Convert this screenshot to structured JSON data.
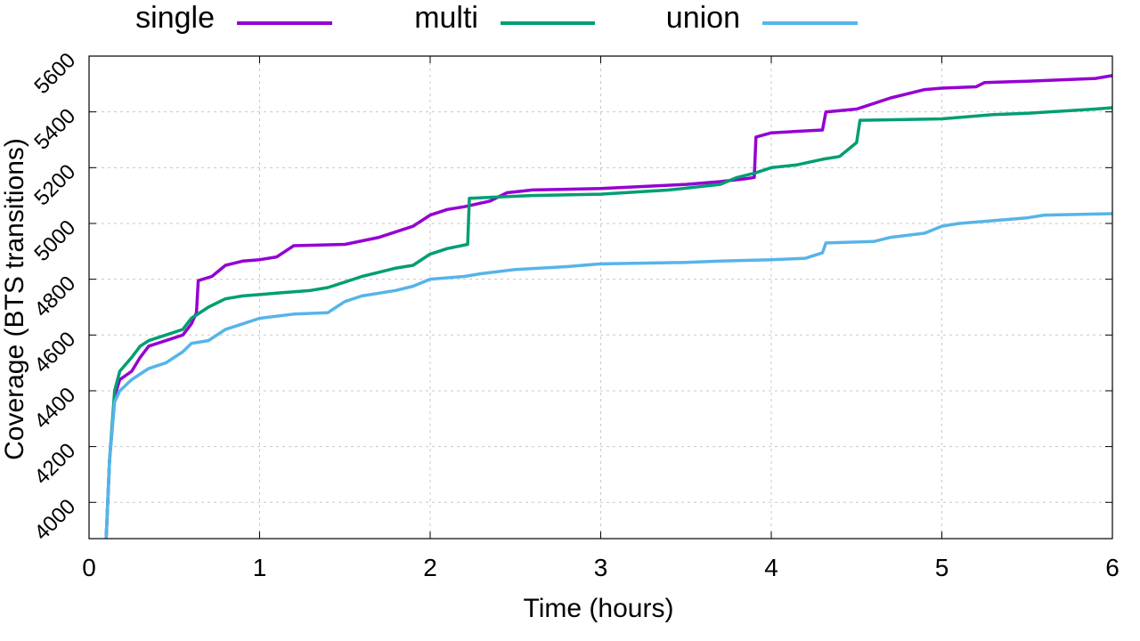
{
  "chart_data": {
    "type": "line",
    "xlabel": "Time (hours)",
    "ylabel": "Coverage (BTS transitions)",
    "xlim": [
      0,
      6
    ],
    "ylim": [
      3870,
      5600
    ],
    "x_ticks": [
      "0",
      "1",
      "2",
      "3",
      "4",
      "5",
      "6"
    ],
    "y_ticks": [
      "4000",
      "4200",
      "4400",
      "4600",
      "4800",
      "5000",
      "5200",
      "5400",
      "5600"
    ],
    "grid": true,
    "legend_position": "top",
    "series": [
      {
        "name": "single",
        "color": "#9400d3",
        "points": [
          [
            0.1,
            3870
          ],
          [
            0.12,
            4150
          ],
          [
            0.15,
            4380
          ],
          [
            0.18,
            4440
          ],
          [
            0.25,
            4470
          ],
          [
            0.3,
            4520
          ],
          [
            0.35,
            4560
          ],
          [
            0.45,
            4580
          ],
          [
            0.55,
            4600
          ],
          [
            0.6,
            4640
          ],
          [
            0.63,
            4680
          ],
          [
            0.64,
            4795
          ],
          [
            0.72,
            4810
          ],
          [
            0.8,
            4850
          ],
          [
            0.9,
            4865
          ],
          [
            1.0,
            4870
          ],
          [
            1.1,
            4880
          ],
          [
            1.15,
            4900
          ],
          [
            1.2,
            4920
          ],
          [
            1.5,
            4925
          ],
          [
            1.7,
            4950
          ],
          [
            1.9,
            4990
          ],
          [
            2.0,
            5030
          ],
          [
            2.1,
            5050
          ],
          [
            2.2,
            5060
          ],
          [
            2.35,
            5080
          ],
          [
            2.45,
            5110
          ],
          [
            2.6,
            5120
          ],
          [
            3.0,
            5125
          ],
          [
            3.5,
            5140
          ],
          [
            3.7,
            5150
          ],
          [
            3.85,
            5160
          ],
          [
            3.9,
            5165
          ],
          [
            3.91,
            5310
          ],
          [
            4.0,
            5325
          ],
          [
            4.3,
            5335
          ],
          [
            4.32,
            5400
          ],
          [
            4.5,
            5410
          ],
          [
            4.55,
            5420
          ],
          [
            4.7,
            5450
          ],
          [
            4.9,
            5480
          ],
          [
            5.0,
            5485
          ],
          [
            5.2,
            5490
          ],
          [
            5.25,
            5505
          ],
          [
            5.5,
            5510
          ],
          [
            5.9,
            5520
          ],
          [
            6.0,
            5530
          ]
        ]
      },
      {
        "name": "multi",
        "color": "#009e73",
        "points": [
          [
            0.1,
            3870
          ],
          [
            0.12,
            4150
          ],
          [
            0.15,
            4400
          ],
          [
            0.18,
            4470
          ],
          [
            0.25,
            4520
          ],
          [
            0.3,
            4560
          ],
          [
            0.35,
            4580
          ],
          [
            0.45,
            4600
          ],
          [
            0.55,
            4620
          ],
          [
            0.6,
            4660
          ],
          [
            0.7,
            4700
          ],
          [
            0.8,
            4730
          ],
          [
            0.9,
            4740
          ],
          [
            1.0,
            4745
          ],
          [
            1.1,
            4750
          ],
          [
            1.3,
            4760
          ],
          [
            1.4,
            4770
          ],
          [
            1.5,
            4790
          ],
          [
            1.6,
            4810
          ],
          [
            1.7,
            4825
          ],
          [
            1.8,
            4840
          ],
          [
            1.9,
            4850
          ],
          [
            2.0,
            4890
          ],
          [
            2.1,
            4910
          ],
          [
            2.22,
            4925
          ],
          [
            2.23,
            5090
          ],
          [
            2.4,
            5095
          ],
          [
            2.6,
            5100
          ],
          [
            3.0,
            5105
          ],
          [
            3.4,
            5120
          ],
          [
            3.7,
            5140
          ],
          [
            3.8,
            5165
          ],
          [
            3.9,
            5180
          ],
          [
            4.0,
            5200
          ],
          [
            4.15,
            5210
          ],
          [
            4.3,
            5230
          ],
          [
            4.4,
            5240
          ],
          [
            4.5,
            5290
          ],
          [
            4.52,
            5370
          ],
          [
            5.0,
            5375
          ],
          [
            5.3,
            5390
          ],
          [
            5.5,
            5395
          ],
          [
            5.9,
            5410
          ],
          [
            6.0,
            5415
          ]
        ]
      },
      {
        "name": "union",
        "color": "#56b4e9",
        "points": [
          [
            0.1,
            3870
          ],
          [
            0.12,
            4150
          ],
          [
            0.15,
            4360
          ],
          [
            0.18,
            4400
          ],
          [
            0.25,
            4440
          ],
          [
            0.35,
            4480
          ],
          [
            0.45,
            4500
          ],
          [
            0.55,
            4540
          ],
          [
            0.6,
            4570
          ],
          [
            0.7,
            4580
          ],
          [
            0.8,
            4620
          ],
          [
            0.9,
            4640
          ],
          [
            1.0,
            4660
          ],
          [
            1.2,
            4675
          ],
          [
            1.4,
            4680
          ],
          [
            1.5,
            4720
          ],
          [
            1.6,
            4740
          ],
          [
            1.7,
            4750
          ],
          [
            1.8,
            4760
          ],
          [
            1.9,
            4775
          ],
          [
            2.0,
            4800
          ],
          [
            2.2,
            4810
          ],
          [
            2.3,
            4820
          ],
          [
            2.5,
            4835
          ],
          [
            2.8,
            4845
          ],
          [
            3.0,
            4855
          ],
          [
            3.5,
            4860
          ],
          [
            3.7,
            4865
          ],
          [
            4.0,
            4870
          ],
          [
            4.2,
            4875
          ],
          [
            4.3,
            4895
          ],
          [
            4.32,
            4930
          ],
          [
            4.6,
            4935
          ],
          [
            4.7,
            4950
          ],
          [
            4.9,
            4965
          ],
          [
            5.0,
            4990
          ],
          [
            5.1,
            5000
          ],
          [
            5.5,
            5020
          ],
          [
            5.6,
            5030
          ],
          [
            6.0,
            5035
          ]
        ]
      }
    ]
  }
}
